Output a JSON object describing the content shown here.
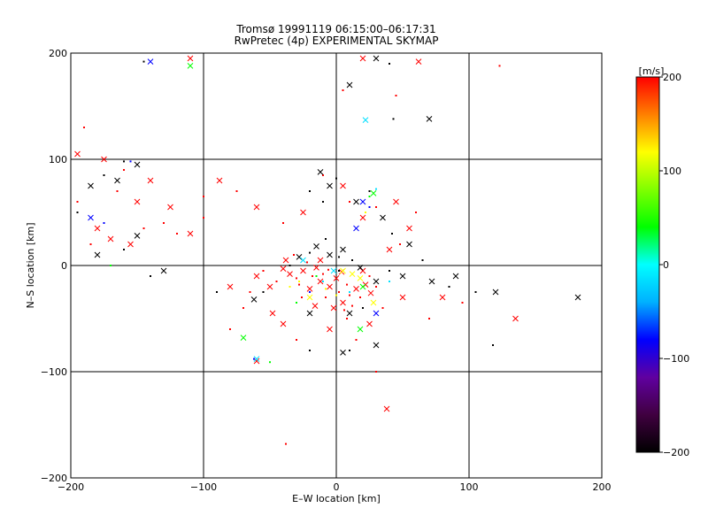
{
  "chart_data": {
    "type": "scatter",
    "title": "Tromsø 19991119 06:15:00–06:17:31",
    "subtitle": "RwPretec (4p) EXPERIMENTAL SKYMAP",
    "xlabel": "E–W location [km]",
    "ylabel": "N–S location [km]",
    "xlim": [
      -200,
      200
    ],
    "ylim": [
      -200,
      200
    ],
    "xticks": [
      -200,
      -100,
      0,
      100,
      200
    ],
    "yticks": [
      -200,
      -100,
      0,
      100,
      200
    ],
    "x_tick_labels": [
      "−200",
      "−100",
      "0",
      "100",
      "200"
    ],
    "y_tick_labels": [
      "−200",
      "−100",
      "0",
      "100",
      "200"
    ],
    "grid": true,
    "colorbar": {
      "label": "[m/s]",
      "range": [
        -200,
        200
      ],
      "ticks": [
        200,
        100,
        0,
        -100,
        -200
      ],
      "tick_labels": [
        "200",
        "100",
        "0",
        "−100",
        "−200"
      ],
      "colors": [
        "#000000",
        "#400040",
        "#6000a0",
        "#0000ff",
        "#00b0ff",
        "#00ffff",
        "#00ff00",
        "#80ff00",
        "#ffff00",
        "#ff8000",
        "#ff0000"
      ]
    },
    "series": [
      {
        "color": "#ff0000",
        "points": [
          [
            -12,
            -15
          ],
          [
            -18,
            -10
          ],
          [
            -5,
            -20
          ],
          [
            2,
            -25
          ],
          [
            -25,
            -5
          ],
          [
            -30,
            -12
          ],
          [
            -20,
            -22
          ],
          [
            -8,
            -30
          ],
          [
            5,
            -35
          ],
          [
            10,
            -28
          ],
          [
            -15,
            -2
          ],
          [
            -22,
            3
          ],
          [
            -35,
            -8
          ],
          [
            -28,
            -18
          ],
          [
            -40,
            -3
          ],
          [
            -10,
            -8
          ],
          [
            0,
            -12
          ],
          [
            8,
            -18
          ],
          [
            15,
            -22
          ],
          [
            12,
            -38
          ],
          [
            -2,
            -40
          ],
          [
            18,
            -30
          ],
          [
            22,
            -18
          ],
          [
            25,
            -10
          ],
          [
            20,
            -5
          ],
          [
            -45,
            -15
          ],
          [
            -50,
            -20
          ],
          [
            -55,
            -5
          ],
          [
            -38,
            5
          ],
          [
            -32,
            10
          ],
          [
            -12,
            5
          ],
          [
            -6,
            -4
          ],
          [
            4,
            -6
          ],
          [
            6,
            -42
          ],
          [
            -16,
            -38
          ],
          [
            -26,
            -30
          ],
          [
            26,
            -26
          ],
          [
            30,
            -20
          ],
          [
            -60,
            -10
          ],
          [
            -65,
            -25
          ],
          [
            40,
            15
          ],
          [
            48,
            20
          ],
          [
            55,
            35
          ],
          [
            60,
            50
          ],
          [
            45,
            60
          ],
          [
            30,
            55
          ],
          [
            20,
            45
          ],
          [
            10,
            60
          ],
          [
            5,
            75
          ],
          [
            -10,
            85
          ],
          [
            -25,
            50
          ],
          [
            -40,
            40
          ],
          [
            -60,
            55
          ],
          [
            -75,
            70
          ],
          [
            -88,
            80
          ],
          [
            -100,
            65
          ],
          [
            -110,
            30
          ],
          [
            -130,
            40
          ],
          [
            -150,
            60
          ],
          [
            -160,
            90
          ],
          [
            -175,
            100
          ],
          [
            -190,
            130
          ],
          [
            -195,
            105
          ],
          [
            -185,
            20
          ],
          [
            -170,
            25
          ],
          [
            -145,
            35
          ],
          [
            -125,
            55
          ],
          [
            -120,
            30
          ],
          [
            -155,
            20
          ],
          [
            -195,
            60
          ],
          [
            -180,
            35
          ],
          [
            -165,
            70
          ],
          [
            -140,
            80
          ],
          [
            -100,
            45
          ],
          [
            -80,
            -20
          ],
          [
            -70,
            -40
          ],
          [
            -40,
            -55
          ],
          [
            -30,
            -70
          ],
          [
            -5,
            -60
          ],
          [
            15,
            -70
          ],
          [
            25,
            -55
          ],
          [
            35,
            -40
          ],
          [
            50,
            -30
          ],
          [
            70,
            -50
          ],
          [
            80,
            -30
          ],
          [
            95,
            -35
          ],
          [
            135,
            -50
          ],
          [
            123,
            188
          ],
          [
            62,
            192
          ],
          [
            45,
            160
          ],
          [
            20,
            195
          ],
          [
            5,
            165
          ],
          [
            -110,
            195
          ],
          [
            30,
            -100
          ],
          [
            38,
            -135
          ],
          [
            -38,
            -168
          ],
          [
            -60,
            -90
          ],
          [
            -80,
            -60
          ],
          [
            -48,
            -45
          ],
          [
            8,
            -50
          ]
        ]
      },
      {
        "color": "#000000",
        "points": [
          [
            -5,
            10
          ],
          [
            2,
            8
          ],
          [
            -15,
            18
          ],
          [
            -8,
            25
          ],
          [
            5,
            15
          ],
          [
            12,
            5
          ],
          [
            18,
            -2
          ],
          [
            -20,
            12
          ],
          [
            -28,
            8
          ],
          [
            -35,
            0
          ],
          [
            10,
            -45
          ],
          [
            20,
            -40
          ],
          [
            -20,
            -45
          ],
          [
            -30,
            -35
          ],
          [
            30,
            -15
          ],
          [
            40,
            -5
          ],
          [
            50,
            -10
          ],
          [
            -10,
            60
          ],
          [
            -5,
            75
          ],
          [
            0,
            82
          ],
          [
            -12,
            88
          ],
          [
            -20,
            70
          ],
          [
            15,
            60
          ],
          [
            25,
            70
          ],
          [
            35,
            45
          ],
          [
            42,
            30
          ],
          [
            55,
            20
          ],
          [
            65,
            5
          ],
          [
            72,
            -15
          ],
          [
            85,
            -20
          ],
          [
            90,
            -10
          ],
          [
            105,
            -25
          ],
          [
            120,
            -25
          ],
          [
            -55,
            -25
          ],
          [
            -62,
            -32
          ],
          [
            -90,
            -25
          ],
          [
            -150,
            95
          ],
          [
            -160,
            98
          ],
          [
            -165,
            80
          ],
          [
            -175,
            85
          ],
          [
            -185,
            75
          ],
          [
            -195,
            50
          ],
          [
            -180,
            10
          ],
          [
            -160,
            15
          ],
          [
            -150,
            28
          ],
          [
            -140,
            -10
          ],
          [
            -130,
            -5
          ],
          [
            10,
            -80
          ],
          [
            5,
            -82
          ],
          [
            -20,
            -80
          ],
          [
            30,
            195
          ],
          [
            40,
            190
          ],
          [
            10,
            170
          ],
          [
            -145,
            192
          ],
          [
            182,
            -30
          ],
          [
            118,
            -75
          ],
          [
            70,
            138
          ],
          [
            43,
            138
          ],
          [
            30,
            -75
          ],
          [
            2,
            -5
          ]
        ]
      },
      {
        "color": "#0000ff",
        "points": [
          [
            -140,
            192
          ],
          [
            -155,
            98
          ],
          [
            20,
            60
          ],
          [
            25,
            55
          ],
          [
            15,
            35
          ],
          [
            -62,
            -88
          ],
          [
            -185,
            45
          ],
          [
            -175,
            40
          ],
          [
            30,
            -45
          ],
          [
            -20,
            -25
          ]
        ]
      },
      {
        "color": "#00ff00",
        "points": [
          [
            -110,
            188
          ],
          [
            25,
            65
          ],
          [
            28,
            68
          ],
          [
            -30,
            -35
          ],
          [
            -70,
            -68
          ],
          [
            -50,
            -91
          ],
          [
            20,
            -20
          ],
          [
            -15,
            -10
          ],
          [
            18,
            -60
          ],
          [
            -170,
            0
          ]
        ]
      },
      {
        "color": "#00e0ff",
        "points": [
          [
            22,
            137
          ],
          [
            30,
            72
          ],
          [
            -2,
            -5
          ],
          [
            -10,
            -15
          ],
          [
            -60,
            -88
          ],
          [
            40,
            -15
          ],
          [
            -25,
            5
          ],
          [
            10,
            -25
          ]
        ]
      },
      {
        "color": "#ffff00",
        "points": [
          [
            5,
            -5
          ],
          [
            -8,
            -22
          ],
          [
            18,
            -12
          ],
          [
            -35,
            -20
          ],
          [
            28,
            -35
          ],
          [
            22,
            50
          ],
          [
            -20,
            -30
          ],
          [
            0,
            -28
          ],
          [
            12,
            -8
          ],
          [
            -28,
            -15
          ]
        ]
      }
    ]
  }
}
